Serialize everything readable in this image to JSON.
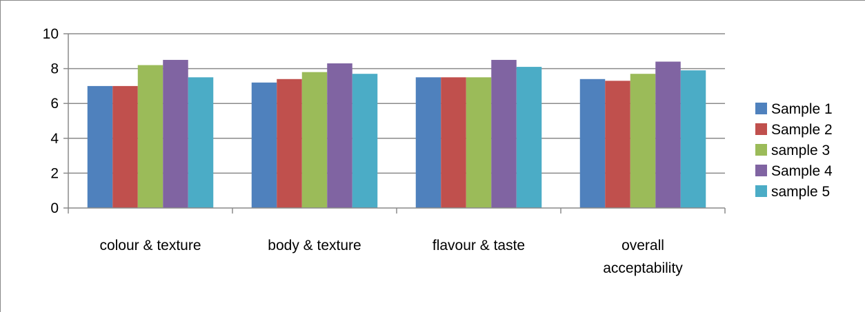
{
  "chart_data": {
    "type": "bar",
    "categories": [
      "colour & texture",
      "body & texture",
      "flavour & taste",
      "overall acceptability"
    ],
    "series": [
      {
        "name": "Sample 1",
        "color": "#4F81BD",
        "values": [
          7.0,
          7.2,
          7.5,
          7.4
        ]
      },
      {
        "name": "Sample 2",
        "color": "#C0504D",
        "values": [
          7.0,
          7.4,
          7.5,
          7.3
        ]
      },
      {
        "name": "sample 3",
        "color": "#9BBB59",
        "values": [
          8.2,
          7.8,
          7.5,
          7.7
        ]
      },
      {
        "name": "Sample 4",
        "color": "#8064A2",
        "values": [
          8.5,
          8.3,
          8.5,
          8.4
        ]
      },
      {
        "name": "sample 5",
        "color": "#4BACC6",
        "values": [
          7.5,
          7.7,
          8.1,
          7.9
        ]
      }
    ],
    "yticks": [
      "0",
      "2",
      "4",
      "6",
      "8",
      "10"
    ],
    "ylim": [
      0,
      10
    ],
    "grid": true,
    "legend": "right"
  }
}
